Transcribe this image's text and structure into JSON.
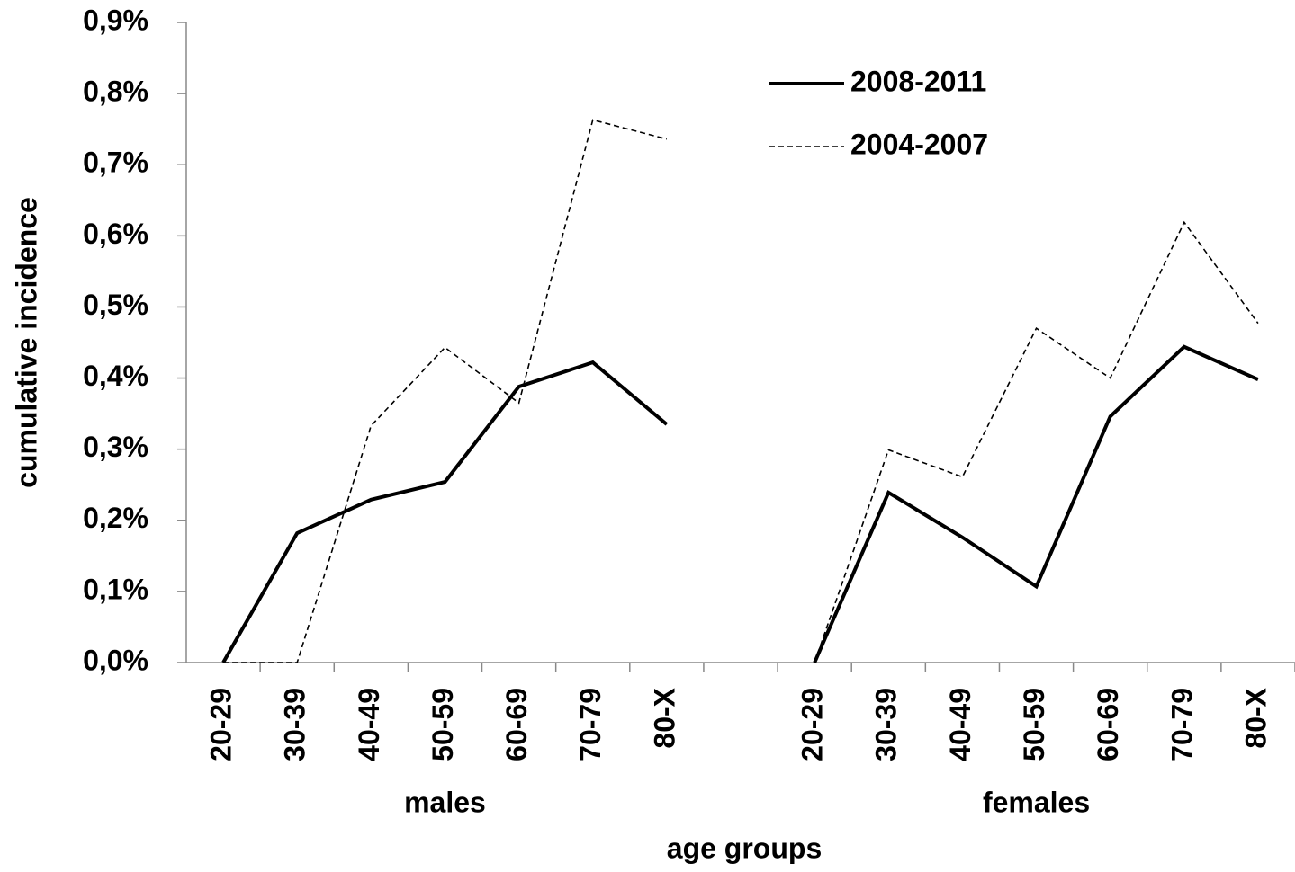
{
  "chart_data": {
    "type": "line",
    "y_label": "cumulative incidence",
    "x_label": "age groups",
    "groups": [
      "males",
      "females"
    ],
    "categories": [
      "20-29",
      "30-39",
      "40-49",
      "50-59",
      "60-69",
      "70-79",
      "80-X",
      null,
      "20-29",
      "30-39",
      "40-49",
      "50-59",
      "60-69",
      "70-79",
      "80-X"
    ],
    "series": [
      {
        "name": "2008-2011",
        "color": "#000000",
        "style": "solid",
        "values": [
          0,
          0.182,
          0.229,
          0.254,
          0.388,
          0.422,
          0.335,
          null,
          0,
          0.239,
          0.176,
          0.107,
          0.346,
          0.444,
          0.398
        ]
      },
      {
        "name": "2004-2007",
        "color": "#000000",
        "style": "dashed",
        "values": [
          0,
          0,
          0.333,
          0.443,
          0.365,
          0.763,
          0.736,
          null,
          0,
          0.299,
          0.261,
          0.47,
          0.4,
          0.619,
          0.477
        ]
      }
    ],
    "ylim": [
      0,
      0.9
    ],
    "yticks": [
      {
        "value": 0,
        "label": "0,0%"
      },
      {
        "value": 0.1,
        "label": "0,1%"
      },
      {
        "value": 0.2,
        "label": "0,2%"
      },
      {
        "value": 0.3,
        "label": "0,3%"
      },
      {
        "value": 0.4,
        "label": "0,4%"
      },
      {
        "value": 0.5,
        "label": "0,5%"
      },
      {
        "value": 0.6,
        "label": "0,6%"
      },
      {
        "value": 0.7,
        "label": "0,7%"
      },
      {
        "value": 0.8,
        "label": "0,8%"
      },
      {
        "value": 0.9,
        "label": "0,9%"
      }
    ],
    "grid": false,
    "legend": "top-right"
  }
}
